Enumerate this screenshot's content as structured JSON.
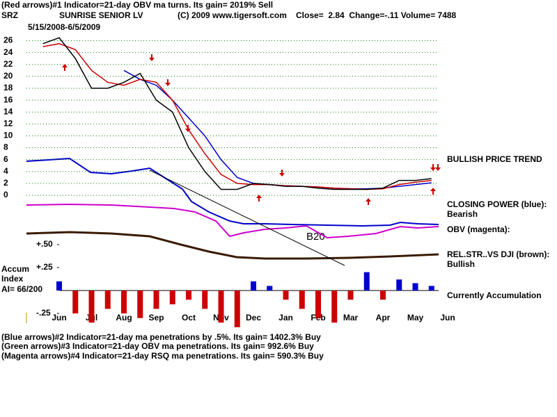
{
  "header": {
    "line1": "(Red arrows)#1 Indicator=21-day OBV ma turns. Its gain= 2019% Sell",
    "symbol": "SRZ",
    "company": "SUNRISE SENIOR LV",
    "copyright": "(C) 2009 www.tigersoft.com",
    "quote": "Close=  2.84  Change=-.11 Volume= 7488",
    "dates": "5/15/2008-6/5/2009"
  },
  "labels": {
    "trend": "BULLISH PRICE TREND",
    "closing_power": "CLOSING POWER (blue):",
    "closing_power_state": "Bearish",
    "obv": "OBV (magenta):",
    "rel_str": "REL.STR..VS DJI (brown):",
    "rel_str_state": "Bullish",
    "accum_state": "Currently Accumulation",
    "accum_1": "Accum",
    "accum_2": "Index",
    "ai": "AI= 66/200",
    "pattern": "B20"
  },
  "footer": [
    "(Blue arrows)#2 Indicator=21-day ma penetrations by .5%. Its gain= 1402.3% Buy",
    "(Green arrows)#3 Indicator=21-day OBV ma penetrations. Its gain= 992.6% Buy",
    "(Magenta arrows)#4 Indicator=21-day RSQ ma penetrations. Its gain= 590.3% Buy"
  ],
  "chart_data": [
    {
      "type": "line",
      "ylim": [
        0,
        27
      ],
      "yticks": [
        0,
        2,
        4,
        6,
        8,
        10,
        12,
        14,
        16,
        18,
        20,
        22,
        24,
        26
      ],
      "grid": true,
      "grid_color": "#008000",
      "series": [
        {
          "color": "#0000cc",
          "values": [
            null,
            null,
            null,
            null,
            null,
            21,
            19.5,
            18.5,
            16,
            13,
            10,
            6,
            3,
            2,
            1.8,
            1.6,
            1.5,
            1.4,
            1.2,
            1.1,
            1.1,
            1.2,
            1.5,
            1.8,
            2.1,
            null
          ]
        },
        {
          "color": "#cc0000",
          "values": [
            25,
            25.5,
            24.5,
            21,
            19,
            18.5,
            19.5,
            19,
            16,
            11,
            7,
            3.5,
            2,
            1.8,
            1.8,
            1.6,
            1.5,
            1.4,
            1.2,
            1.1,
            1,
            1.1,
            1.8,
            2.2,
            2.5,
            null
          ]
        },
        {
          "color": "#000000",
          "values": [
            25.5,
            26.5,
            23,
            18,
            18,
            19,
            20.5,
            16,
            14,
            8,
            4,
            1,
            1,
            2,
            1.8,
            1.5,
            1.5,
            1.2,
            1,
            1,
            1,
            1.2,
            2.5,
            2.5,
            2.8,
            null
          ]
        }
      ]
    },
    {
      "type": "bar",
      "ylim": [
        -0.55,
        0.5
      ],
      "yticks": [
        {
          "value": 0.5,
          "label": "+.50"
        },
        {
          "value": 0.25,
          "label": "+.25"
        },
        {
          "value": -0.25,
          "label": "-.25"
        }
      ],
      "positive_color": "#0000cc",
      "negative_color": "#cc0000",
      "categories": [
        null,
        "Jun",
        null,
        "Jul",
        null,
        "Aug",
        null,
        "Sep",
        null,
        "Oct",
        null,
        "Nov",
        null,
        "Dec",
        null,
        "Jan",
        null,
        "Feb",
        null,
        "Mar",
        null,
        "Apr",
        null,
        "May",
        null,
        "Jun"
      ],
      "values": [
        null,
        0.1,
        -0.25,
        -0.35,
        -0.2,
        -0.25,
        -0.3,
        -0.2,
        -0.15,
        -0.1,
        -0.2,
        -0.35,
        -0.4,
        0.1,
        0.05,
        -0.1,
        -0.2,
        -0.3,
        -0.35,
        -0.1,
        0.2,
        -0.1,
        0.12,
        0.08,
        0.05,
        null
      ]
    }
  ]
}
